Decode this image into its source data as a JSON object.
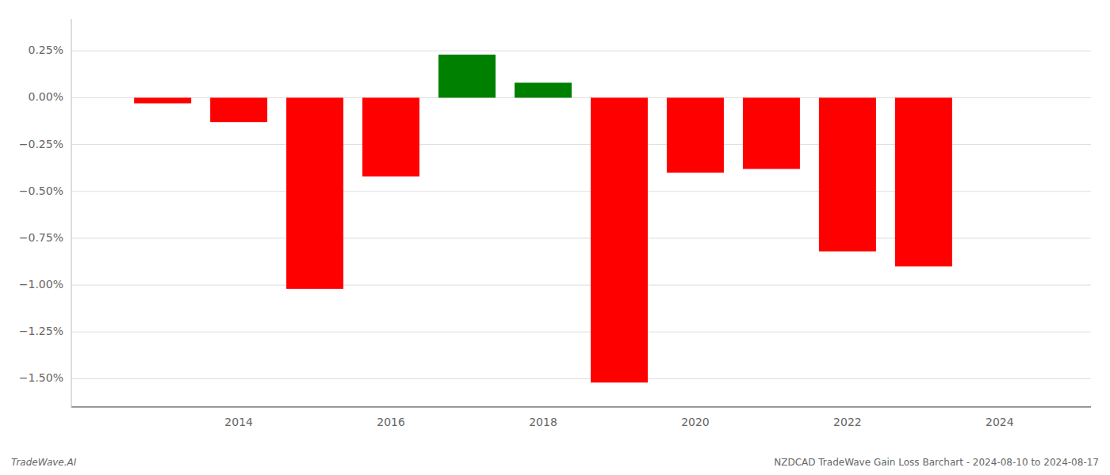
{
  "chart_data": {
    "type": "bar",
    "x": [
      2013,
      2014,
      2015,
      2016,
      2017,
      2018,
      2019,
      2020,
      2021,
      2022,
      2023
    ],
    "values": [
      -0.03,
      -0.13,
      -1.02,
      -0.42,
      0.23,
      0.08,
      -1.52,
      -0.4,
      -0.38,
      -0.82,
      -0.9
    ],
    "colors": [
      "#ff0000",
      "#ff0000",
      "#ff0000",
      "#ff0000",
      "#008000",
      "#008000",
      "#ff0000",
      "#ff0000",
      "#ff0000",
      "#ff0000",
      "#ff0000"
    ],
    "xlim": [
      2011.8,
      2025.2
    ],
    "xticks": [
      2014,
      2016,
      2018,
      2020,
      2022,
      2024
    ],
    "ylim": [
      -1.65,
      0.42
    ],
    "yticks": [
      {
        "value": 0.25,
        "label": "0.25%"
      },
      {
        "value": 0.0,
        "label": "0.00%"
      },
      {
        "value": -0.25,
        "label": "−0.25%"
      },
      {
        "value": -0.5,
        "label": "−0.50%"
      },
      {
        "value": -0.75,
        "label": "−0.75%"
      },
      {
        "value": -1.0,
        "label": "−1.00%"
      },
      {
        "value": -1.25,
        "label": "−1.25%"
      },
      {
        "value": -1.5,
        "label": "−1.50%"
      }
    ],
    "grid": true,
    "annotations": [
      "TradeWave.AI",
      "NZDCAD TradeWave Gain Loss Barchart - 2024-08-10 to 2024-08-17"
    ]
  }
}
